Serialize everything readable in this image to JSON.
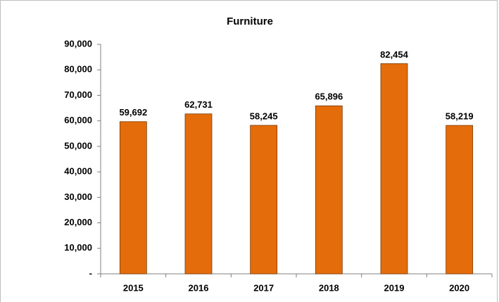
{
  "chart_data": {
    "type": "bar",
    "title": "Furniture",
    "categories": [
      "2015",
      "2016",
      "2017",
      "2018",
      "2019",
      "2020"
    ],
    "values": [
      59692,
      62731,
      58245,
      65896,
      82454,
      58219
    ],
    "value_labels": [
      "59,692",
      "62,731",
      "58,245",
      "65,896",
      "82,454",
      "58,219"
    ],
    "color": "#e46c0a",
    "ylim": [
      0,
      90000
    ],
    "yticks": [
      {
        "value": 0,
        "label": "-"
      },
      {
        "value": 10000,
        "label": "10,000"
      },
      {
        "value": 20000,
        "label": "20,000"
      },
      {
        "value": 30000,
        "label": "30,000"
      },
      {
        "value": 40000,
        "label": "40,000"
      },
      {
        "value": 50000,
        "label": "50,000"
      },
      {
        "value": 60000,
        "label": "60,000"
      },
      {
        "value": 70000,
        "label": "70,000"
      },
      {
        "value": 80000,
        "label": "80,000"
      },
      {
        "value": 90000,
        "label": "90,000"
      }
    ],
    "grid": false
  }
}
